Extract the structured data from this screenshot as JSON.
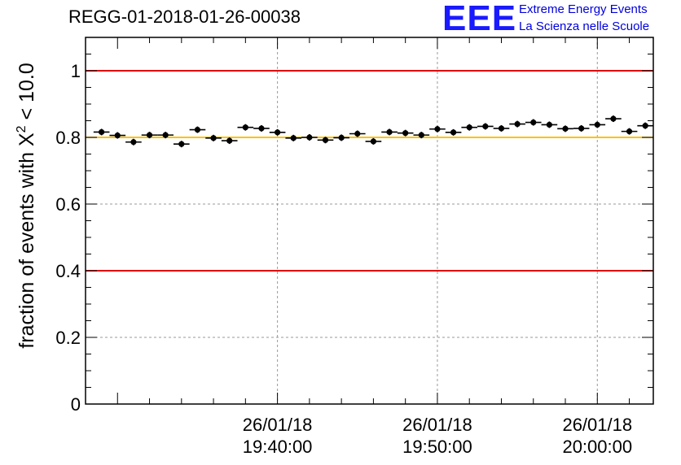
{
  "header": {
    "title": "REGG-01-2018-01-26-00038",
    "logo_text": "EEE",
    "logo_line1": "Extreme Energy Events",
    "logo_line2": "La Scienza nelle Scuole"
  },
  "colors": {
    "logo": "#1a1aff",
    "limit_line": "#e00000",
    "reference_line": "#ffc000",
    "grid": "#999999",
    "marker": "#000000"
  },
  "chart_data": {
    "type": "scatter",
    "title": "REGG-01-2018-01-26-00038",
    "ylabel_main": "fraction of events with X",
    "ylabel_sup": "2",
    "ylabel_tail": " < 10.0",
    "xlabel": "",
    "ylim": [
      0,
      1.1
    ],
    "xlim_minutes": [
      -12,
      23.5
    ],
    "y_ticks": [
      "0",
      "0.2",
      "0.4",
      "0.6",
      "0.8",
      "1"
    ],
    "x_ticks": [
      {
        "minutes": 0,
        "date": "26/01/18",
        "time": "19:40:00"
      },
      {
        "minutes": 10,
        "date": "26/01/18",
        "time": "19:50:00"
      },
      {
        "minutes": 20,
        "date": "26/01/18",
        "time": "20:00:00"
      }
    ],
    "horizontal_lines": [
      {
        "value": 1.0,
        "style": "limit"
      },
      {
        "value": 0.4,
        "style": "limit"
      },
      {
        "value": 0.8,
        "style": "reference"
      }
    ],
    "bin_width_minutes": 1,
    "x": [
      -11,
      -10,
      -9,
      -8,
      -7,
      -6,
      -5,
      -4,
      -3,
      -2,
      -1,
      0,
      1,
      2,
      3,
      4,
      5,
      6,
      7,
      8,
      9,
      10,
      11,
      12,
      13,
      14,
      15,
      16,
      17,
      18,
      19,
      20,
      21,
      22,
      23
    ],
    "values": [
      0.816,
      0.806,
      0.786,
      0.807,
      0.807,
      0.78,
      0.823,
      0.798,
      0.79,
      0.83,
      0.827,
      0.815,
      0.798,
      0.8,
      0.792,
      0.799,
      0.811,
      0.788,
      0.816,
      0.813,
      0.807,
      0.825,
      0.815,
      0.83,
      0.833,
      0.827,
      0.84,
      0.845,
      0.838,
      0.826,
      0.827,
      0.838,
      0.856,
      0.818,
      0.835
    ]
  }
}
